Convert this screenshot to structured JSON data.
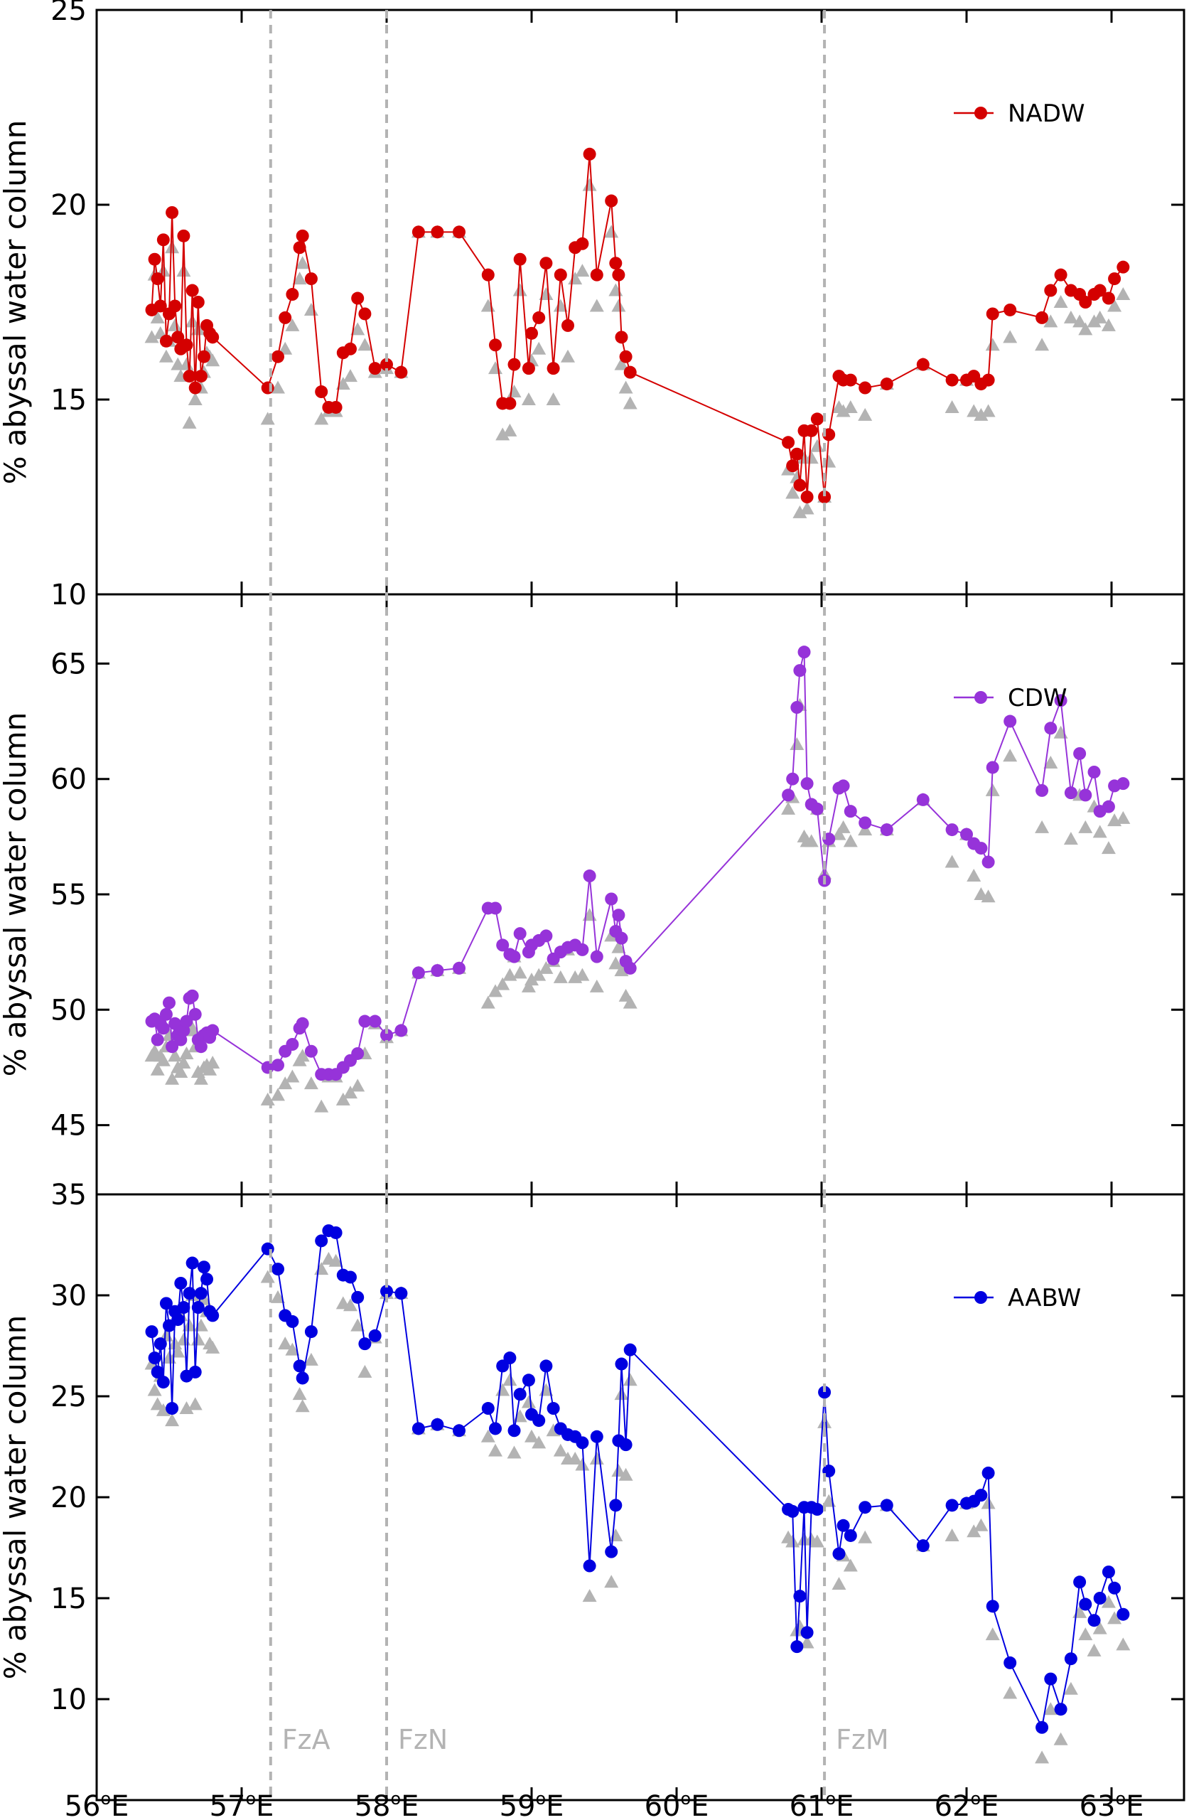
{
  "chart_data": {
    "type": "line",
    "x_axis": {
      "min": 56,
      "max": 63.5,
      "ticks": [
        56,
        57,
        58,
        59,
        60,
        61,
        62,
        63
      ],
      "tick_suffix": "°E"
    },
    "grid": false,
    "reference_lines": [
      {
        "label": "FzA",
        "x": 57.2,
        "color": "#b3b3b3",
        "style": "dashed"
      },
      {
        "label": "FzN",
        "x": 58.0,
        "color": "#b3b3b3",
        "style": "dashed"
      },
      {
        "label": "FzM",
        "x": 61.02,
        "color": "#b3b3b3",
        "style": "dashed"
      }
    ],
    "panels": [
      {
        "id": "nadw",
        "ylabel": "% abyssal water column",
        "ylim": [
          10,
          25
        ],
        "yticks": [
          10,
          15,
          20,
          25
        ],
        "legend": {
          "label": "NADW",
          "position": "top-right"
        },
        "color": "#d40000",
        "marker_color": "#d40000",
        "secondary_color": "#b3b3b3",
        "x": [
          56.38,
          56.4,
          56.42,
          56.44,
          56.46,
          56.48,
          56.5,
          56.52,
          56.54,
          56.56,
          56.58,
          56.6,
          56.62,
          56.64,
          56.66,
          56.68,
          56.7,
          56.72,
          56.74,
          56.76,
          56.78,
          56.8,
          57.18,
          57.25,
          57.3,
          57.35,
          57.4,
          57.42,
          57.48,
          57.55,
          57.6,
          57.65,
          57.7,
          57.75,
          57.8,
          57.85,
          57.92,
          58.0,
          58.1,
          58.22,
          58.35,
          58.5,
          58.7,
          58.75,
          58.8,
          58.85,
          58.88,
          58.92,
          58.98,
          59.0,
          59.05,
          59.1,
          59.15,
          59.2,
          59.25,
          59.3,
          59.35,
          59.4,
          59.45,
          59.55,
          59.58,
          59.6,
          59.62,
          59.65,
          59.68,
          60.77,
          60.8,
          60.83,
          60.85,
          60.88,
          60.9,
          60.93,
          60.97,
          61.02,
          61.05,
          61.12,
          61.15,
          61.2,
          61.3,
          61.45,
          61.7,
          61.9,
          62.0,
          62.05,
          62.1,
          62.15,
          62.18,
          62.3,
          62.52,
          62.58,
          62.65,
          62.72,
          62.78,
          62.82,
          62.88,
          62.92,
          62.98,
          63.02,
          63.08
        ],
        "y": [
          17.3,
          18.6,
          18.1,
          17.4,
          19.1,
          16.5,
          17.2,
          19.8,
          17.4,
          16.6,
          16.3,
          19.2,
          16.4,
          15.6,
          17.8,
          15.3,
          17.5,
          15.6,
          16.1,
          16.9,
          16.7,
          16.6,
          15.3,
          16.1,
          17.1,
          17.7,
          18.9,
          19.2,
          18.1,
          15.2,
          14.8,
          14.8,
          16.2,
          16.3,
          17.6,
          17.2,
          15.8,
          15.9,
          15.7,
          19.3,
          19.3,
          19.3,
          18.2,
          16.4,
          14.9,
          14.9,
          15.9,
          18.6,
          15.8,
          16.7,
          17.1,
          18.5,
          15.8,
          18.2,
          16.9,
          18.9,
          19.0,
          21.3,
          18.2,
          20.1,
          18.5,
          18.2,
          16.6,
          16.1,
          15.7,
          13.9,
          13.3,
          13.6,
          12.8,
          14.2,
          12.5,
          14.2,
          14.5,
          12.5,
          14.1,
          15.6,
          15.5,
          15.5,
          15.3,
          15.4,
          15.9,
          15.5,
          15.5,
          15.6,
          15.4,
          15.5,
          17.2,
          17.3,
          17.1,
          17.8,
          18.2,
          17.8,
          17.7,
          17.5,
          17.7,
          17.8,
          17.6,
          18.1,
          18.4
        ],
        "secondary_y": [
          16.6,
          18.2,
          17.1,
          16.7,
          18.3,
          16.1,
          16.5,
          18.9,
          16.9,
          15.9,
          15.6,
          18.3,
          15.9,
          14.4,
          17.0,
          15.0,
          16.8,
          15.3,
          15.7,
          16.2,
          16.1,
          16.0,
          14.5,
          15.3,
          16.3,
          16.9,
          18.1,
          18.5,
          17.3,
          14.5,
          14.7,
          14.7,
          15.4,
          15.6,
          16.8,
          16.4,
          15.7,
          15.8,
          15.7,
          19.3,
          19.3,
          19.3,
          17.4,
          15.8,
          14.1,
          14.2,
          15.2,
          17.8,
          15.0,
          16.0,
          16.3,
          17.7,
          15.0,
          17.4,
          16.1,
          18.1,
          18.3,
          20.5,
          17.4,
          19.3,
          17.8,
          17.4,
          15.9,
          15.3,
          14.9,
          13.2,
          12.6,
          13.0,
          12.1,
          13.5,
          12.2,
          13.5,
          13.8,
          12.5,
          13.4,
          14.8,
          14.7,
          14.8,
          14.6,
          15.4,
          15.9,
          14.8,
          15.5,
          14.7,
          14.6,
          14.7,
          16.4,
          16.6,
          16.4,
          17.0,
          17.5,
          17.1,
          17.0,
          16.8,
          17.0,
          17.1,
          16.9,
          17.4,
          17.7
        ]
      },
      {
        "id": "cdw",
        "ylabel": "% abyssal water column",
        "ylim": [
          42,
          68
        ],
        "yticks": [
          45,
          50,
          55,
          60,
          65
        ],
        "legend": {
          "label": "CDW",
          "position": "top-right"
        },
        "color": "#9633d9",
        "marker_color": "#9633d9",
        "secondary_color": "#b3b3b3",
        "x": [
          56.38,
          56.4,
          56.42,
          56.44,
          56.46,
          56.48,
          56.5,
          56.52,
          56.54,
          56.56,
          56.58,
          56.6,
          56.62,
          56.64,
          56.66,
          56.68,
          56.7,
          56.72,
          56.74,
          56.76,
          56.78,
          56.8,
          57.18,
          57.25,
          57.3,
          57.35,
          57.4,
          57.42,
          57.48,
          57.55,
          57.6,
          57.65,
          57.7,
          57.75,
          57.8,
          57.85,
          57.92,
          58.0,
          58.1,
          58.22,
          58.35,
          58.5,
          58.7,
          58.75,
          58.8,
          58.85,
          58.88,
          58.92,
          58.98,
          59.0,
          59.05,
          59.1,
          59.15,
          59.2,
          59.25,
          59.3,
          59.35,
          59.4,
          59.45,
          59.55,
          59.58,
          59.6,
          59.62,
          59.65,
          59.68,
          60.77,
          60.8,
          60.83,
          60.85,
          60.88,
          60.9,
          60.93,
          60.97,
          61.02,
          61.05,
          61.12,
          61.15,
          61.2,
          61.3,
          61.45,
          61.7,
          61.9,
          62.0,
          62.05,
          62.1,
          62.15,
          62.18,
          62.3,
          62.52,
          62.58,
          62.65,
          62.72,
          62.78,
          62.82,
          62.88,
          62.92,
          62.98,
          63.02,
          63.08
        ],
        "y": [
          49.5,
          49.6,
          48.7,
          49.4,
          49.2,
          49.8,
          50.3,
          48.4,
          49.4,
          48.9,
          48.7,
          49.1,
          49.5,
          50.5,
          50.6,
          49.8,
          48.7,
          48.4,
          48.9,
          49.0,
          48.8,
          49.1,
          47.5,
          47.6,
          48.2,
          48.5,
          49.2,
          49.4,
          48.2,
          47.2,
          47.2,
          47.2,
          47.5,
          47.8,
          48.1,
          49.5,
          49.5,
          48.9,
          49.1,
          51.6,
          51.7,
          51.8,
          54.4,
          54.4,
          52.8,
          52.4,
          52.3,
          53.3,
          52.5,
          52.8,
          53.0,
          53.2,
          52.2,
          52.5,
          52.7,
          52.8,
          52.6,
          55.8,
          52.3,
          54.8,
          53.4,
          54.1,
          53.1,
          52.1,
          51.8,
          59.3,
          60.0,
          63.1,
          64.7,
          65.5,
          59.8,
          58.9,
          58.7,
          55.6,
          57.4,
          59.6,
          59.7,
          58.6,
          58.1,
          57.8,
          59.1,
          57.8,
          57.6,
          57.2,
          57.0,
          56.4,
          60.5,
          62.5,
          59.5,
          62.2,
          63.4,
          59.4,
          61.1,
          59.3,
          60.3,
          58.6,
          58.8,
          59.7,
          59.8
        ],
        "secondary_y": [
          48.0,
          48.2,
          47.4,
          48.0,
          47.8,
          48.4,
          48.9,
          47.0,
          48.0,
          47.5,
          47.3,
          47.7,
          48.1,
          49.1,
          49.2,
          48.4,
          47.3,
          47.0,
          47.5,
          47.6,
          47.4,
          47.7,
          46.1,
          46.3,
          46.8,
          47.1,
          47.8,
          48.0,
          46.8,
          45.8,
          47.1,
          47.1,
          46.1,
          46.4,
          46.7,
          48.1,
          49.4,
          48.8,
          49.1,
          51.6,
          51.7,
          51.8,
          50.3,
          50.8,
          51.1,
          51.5,
          52.3,
          51.6,
          51.0,
          51.3,
          51.5,
          51.8,
          52.1,
          51.4,
          52.6,
          51.4,
          51.5,
          54.1,
          51.0,
          53.2,
          52.0,
          52.7,
          51.7,
          50.6,
          50.3,
          58.7,
          59.2,
          61.5,
          63.2,
          57.5,
          57.3,
          57.3,
          58.7,
          55.9,
          57.3,
          57.6,
          57.9,
          57.3,
          57.8,
          57.8,
          59.1,
          56.4,
          57.6,
          55.8,
          55.0,
          54.9,
          59.5,
          61.0,
          57.9,
          60.7,
          62.0,
          57.4,
          59.3,
          57.9,
          58.8,
          57.7,
          57.0,
          58.2,
          58.3
        ]
      },
      {
        "id": "aabw",
        "ylabel": "% abyssal water column",
        "ylim": [
          5,
          35
        ],
        "yticks": [
          10,
          15,
          20,
          25,
          30,
          35
        ],
        "legend": {
          "label": "AABW",
          "position": "top-right"
        },
        "color": "#0000e0",
        "marker_color": "#0000e0",
        "secondary_color": "#b3b3b3",
        "x": [
          56.38,
          56.4,
          56.42,
          56.44,
          56.46,
          56.48,
          56.5,
          56.52,
          56.54,
          56.56,
          56.58,
          56.6,
          56.62,
          56.64,
          56.66,
          56.68,
          56.7,
          56.72,
          56.74,
          56.76,
          56.78,
          56.8,
          57.18,
          57.25,
          57.3,
          57.35,
          57.4,
          57.42,
          57.48,
          57.55,
          57.6,
          57.65,
          57.7,
          57.75,
          57.8,
          57.85,
          57.92,
          58.0,
          58.1,
          58.22,
          58.35,
          58.5,
          58.7,
          58.75,
          58.8,
          58.85,
          58.88,
          58.92,
          58.98,
          59.0,
          59.05,
          59.1,
          59.15,
          59.2,
          59.25,
          59.3,
          59.35,
          59.4,
          59.45,
          59.55,
          59.58,
          59.6,
          59.62,
          59.65,
          59.68,
          60.77,
          60.8,
          60.83,
          60.85,
          60.88,
          60.9,
          60.93,
          60.97,
          61.02,
          61.05,
          61.12,
          61.15,
          61.2,
          61.3,
          61.45,
          61.7,
          61.9,
          62.0,
          62.05,
          62.1,
          62.15,
          62.18,
          62.3,
          62.52,
          62.58,
          62.65,
          62.72,
          62.78,
          62.82,
          62.88,
          62.92,
          62.98,
          63.02,
          63.08
        ],
        "y": [
          28.2,
          26.9,
          26.2,
          27.6,
          25.7,
          29.6,
          28.5,
          24.4,
          29.2,
          28.8,
          30.6,
          29.4,
          26.0,
          30.1,
          31.6,
          26.2,
          29.4,
          30.1,
          31.4,
          30.8,
          29.2,
          29.0,
          32.3,
          31.3,
          29.0,
          28.7,
          26.5,
          25.9,
          28.2,
          32.7,
          33.2,
          33.1,
          31.0,
          30.9,
          29.9,
          27.6,
          28.0,
          30.2,
          30.1,
          23.4,
          23.6,
          23.3,
          24.4,
          23.4,
          26.5,
          26.9,
          23.3,
          25.1,
          25.8,
          24.1,
          23.8,
          26.5,
          24.4,
          23.4,
          23.1,
          23.0,
          22.7,
          16.6,
          23.0,
          17.3,
          19.6,
          22.8,
          26.6,
          22.6,
          27.3,
          19.4,
          19.3,
          12.6,
          15.1,
          19.5,
          13.3,
          19.5,
          19.4,
          25.2,
          21.3,
          17.2,
          18.6,
          18.1,
          19.5,
          19.6,
          17.6,
          19.6,
          19.7,
          19.8,
          20.1,
          21.2,
          14.6,
          11.8,
          8.6,
          11.0,
          9.5,
          12.0,
          15.8,
          14.7,
          13.9,
          15.0,
          16.3,
          15.5,
          14.2
        ],
        "secondary_y": [
          26.6,
          25.3,
          24.6,
          26.0,
          24.3,
          28.0,
          26.9,
          23.8,
          27.6,
          27.2,
          29.0,
          27.8,
          24.4,
          28.5,
          30.0,
          24.6,
          27.8,
          28.5,
          29.8,
          29.2,
          27.6,
          27.4,
          30.9,
          29.9,
          27.6,
          27.3,
          25.1,
          24.5,
          26.8,
          31.3,
          31.8,
          31.7,
          29.6,
          29.5,
          28.5,
          26.2,
          27.9,
          30.1,
          30.1,
          23.4,
          23.6,
          23.3,
          23.0,
          22.3,
          25.3,
          25.8,
          22.2,
          24.0,
          24.7,
          23.0,
          22.7,
          25.3,
          23.3,
          22.3,
          21.9,
          21.9,
          21.6,
          15.1,
          21.9,
          15.8,
          18.1,
          21.3,
          25.1,
          21.1,
          25.8,
          18.0,
          17.8,
          13.4,
          13.6,
          17.9,
          12.8,
          17.9,
          17.8,
          23.7,
          19.8,
          15.7,
          17.1,
          16.6,
          18.0,
          19.6,
          17.6,
          18.1,
          19.7,
          18.3,
          18.6,
          19.7,
          13.2,
          10.3,
          7.1,
          9.5,
          8.0,
          10.5,
          14.3,
          13.2,
          12.4,
          13.5,
          14.8,
          14.0,
          12.7
        ]
      }
    ]
  }
}
